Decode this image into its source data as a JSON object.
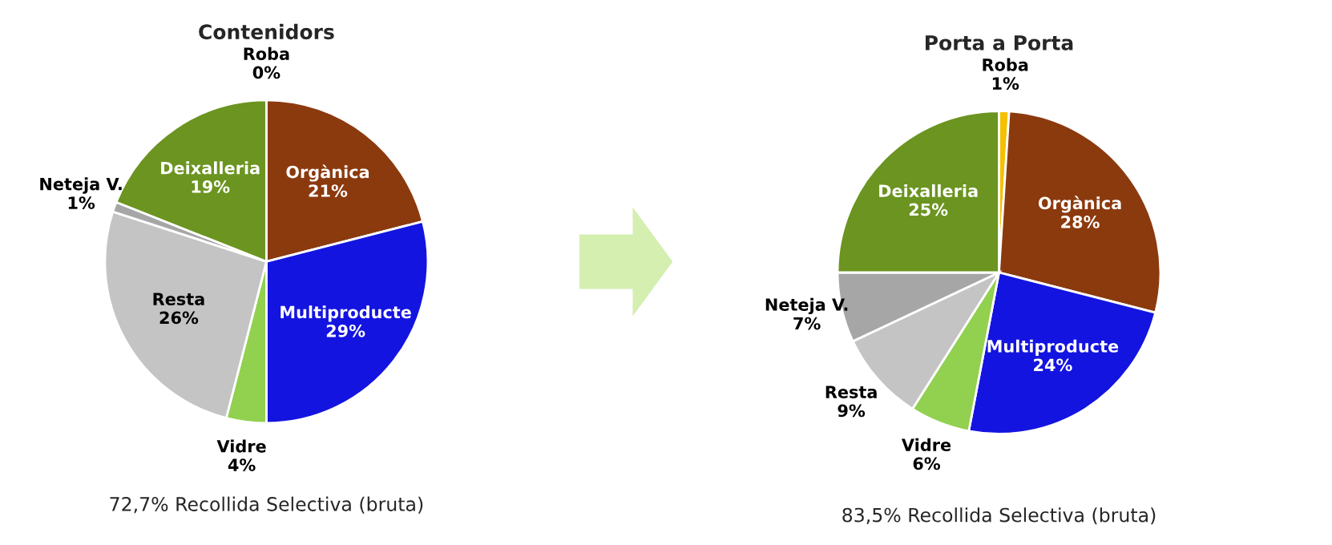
{
  "chart_data": [
    {
      "type": "pie",
      "title": "Contenidors",
      "categories": [
        "Roba",
        "Orgànica",
        "Multiproducte",
        "Vidre",
        "Resta",
        "Neteja V.",
        "Deixalleria"
      ],
      "values": [
        0,
        21,
        29,
        4,
        26,
        1,
        19
      ],
      "colors": [
        "#f5c000",
        "#8b3a0e",
        "#1414e0",
        "#92d050",
        "#c4c4c4",
        "#a6a6a6",
        "#6b9420"
      ],
      "value_labels": [
        "0%",
        "21%",
        "29%",
        "4%",
        "26%",
        "1%",
        "19%"
      ],
      "annotations": [
        "72,7% Recollida Selectiva (bruta)"
      ]
    },
    {
      "type": "pie",
      "title": "Porta a Porta",
      "categories": [
        "Roba",
        "Orgànica",
        "Multiproducte",
        "Vidre",
        "Resta",
        "Neteja V.",
        "Deixalleria"
      ],
      "values": [
        1,
        28,
        24,
        6,
        9,
        7,
        25
      ],
      "colors": [
        "#f5c000",
        "#8b3a0e",
        "#1414e0",
        "#92d050",
        "#c4c4c4",
        "#a6a6a6",
        "#6b9420"
      ],
      "value_labels": [
        "1%",
        "28%",
        "24%",
        "6%",
        "9%",
        "7%",
        "25%"
      ],
      "annotations": [
        "83,5% Recollida Selectiva (bruta)"
      ]
    }
  ]
}
